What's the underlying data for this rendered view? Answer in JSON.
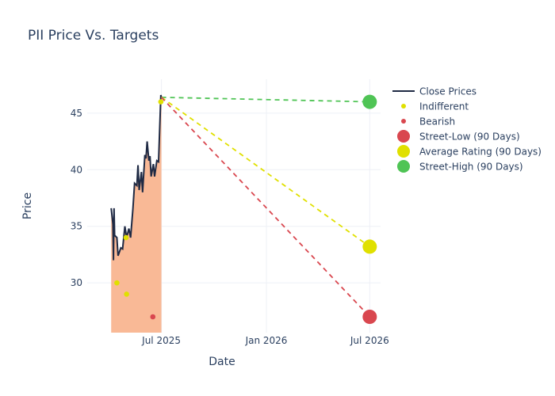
{
  "chart_data": {
    "type": "line",
    "title": "PII Price Vs. Targets",
    "xlabel": "Date",
    "ylabel": "Price",
    "ylim": [
      25.6,
      48.0
    ],
    "xlim": [
      "2025-02-21",
      "2026-07-20"
    ],
    "x_ticks": [
      {
        "date": "2025-07-01",
        "label": "Jul 2025"
      },
      {
        "date": "2026-01-01",
        "label": "Jan 2026"
      },
      {
        "date": "2026-07-01",
        "label": "Jul 2026"
      }
    ],
    "y_ticks": [
      30,
      35,
      40,
      45
    ],
    "grid": true,
    "legend_position": "right",
    "colors": {
      "close": "#1f2a44",
      "fill": "#f9b590",
      "indifferent": "#e0e000",
      "bearish": "#d9474f",
      "low": "#d9474f",
      "avg": "#e0e000",
      "high": "#4fc455",
      "text": "#2a3f5f",
      "grid": "#eef0f6"
    },
    "close_prices": [
      [
        "2025-04-04",
        36.6
      ],
      [
        "2025-04-07",
        35.2
      ],
      [
        "2025-04-08",
        32.0
      ],
      [
        "2025-04-09",
        36.6
      ],
      [
        "2025-04-10",
        34.2
      ],
      [
        "2025-04-14",
        34.0
      ],
      [
        "2025-04-16",
        32.4
      ],
      [
        "2025-04-21",
        33.1
      ],
      [
        "2025-04-24",
        33.0
      ],
      [
        "2025-04-28",
        35.0
      ],
      [
        "2025-05-01",
        34.0
      ],
      [
        "2025-05-05",
        34.8
      ],
      [
        "2025-05-08",
        34.0
      ],
      [
        "2025-05-12",
        36.5
      ],
      [
        "2025-05-15",
        38.8
      ],
      [
        "2025-05-19",
        38.6
      ],
      [
        "2025-05-21",
        40.4
      ],
      [
        "2025-05-23",
        38.2
      ],
      [
        "2025-05-27",
        39.8
      ],
      [
        "2025-05-29",
        38.0
      ],
      [
        "2025-06-02",
        41.3
      ],
      [
        "2025-06-04",
        41.0
      ],
      [
        "2025-06-06",
        42.5
      ],
      [
        "2025-06-09",
        40.8
      ],
      [
        "2025-06-11",
        41.2
      ],
      [
        "2025-06-13",
        39.4
      ],
      [
        "2025-06-17",
        40.5
      ],
      [
        "2025-06-19",
        39.4
      ],
      [
        "2025-06-23",
        40.8
      ],
      [
        "2025-06-26",
        40.7
      ],
      [
        "2025-06-30",
        46.6
      ],
      [
        "2025-07-01",
        46.4
      ]
    ],
    "indifferent": [
      [
        "2025-04-14",
        30.0
      ],
      [
        "2025-05-01",
        29.0
      ],
      [
        "2025-04-30",
        34.0
      ],
      [
        "2025-06-30",
        46.0
      ]
    ],
    "bearish": [
      [
        "2025-06-16",
        27.0
      ]
    ],
    "targets": {
      "date": "2026-07-01",
      "start": [
        "2025-07-01",
        46.4
      ],
      "low": 27.0,
      "avg": 33.2,
      "high": 46.0
    },
    "legend": [
      "Close Prices",
      "Indifferent",
      "Bearish",
      "Street-Low (90 Days)",
      "Average Rating (90 Days)",
      "Street-High (90 Days)"
    ]
  }
}
